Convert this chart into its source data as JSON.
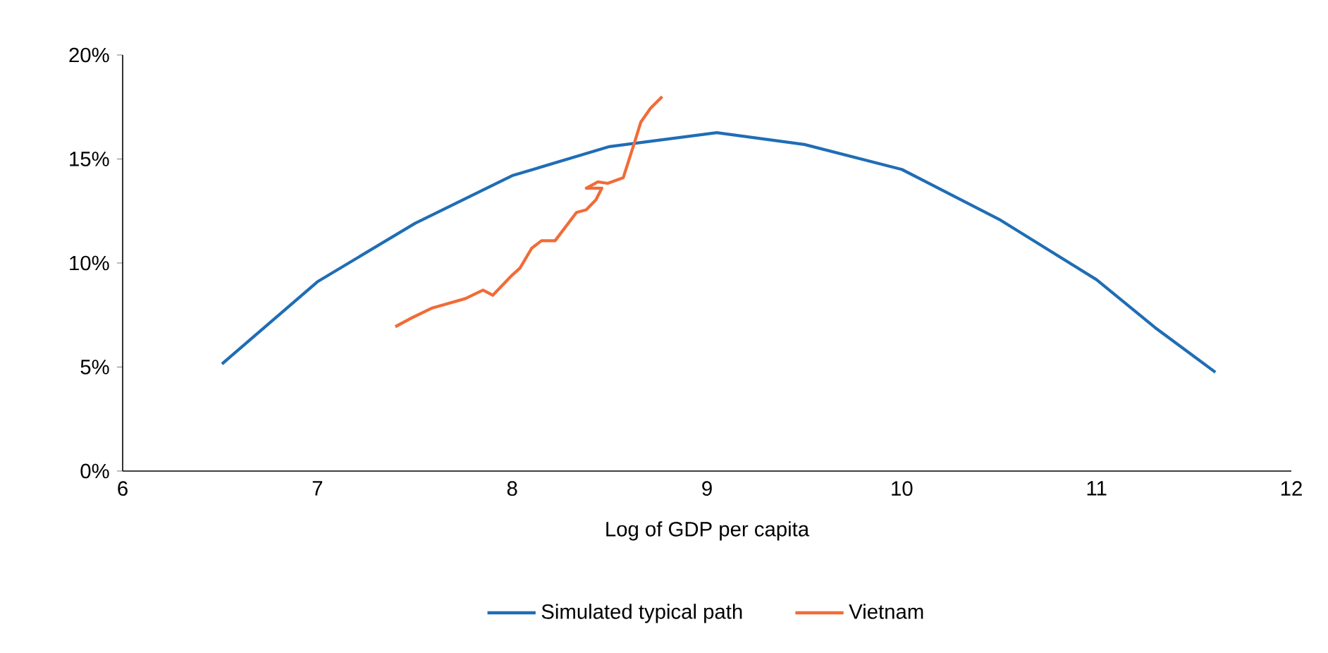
{
  "chart_data": {
    "type": "line",
    "xlabel": "Log of GDP per capita",
    "xlim": [
      6,
      12
    ],
    "xticks": [
      6,
      7,
      8,
      9,
      10,
      11,
      12
    ],
    "ylim": [
      0,
      20
    ],
    "yticks": [
      {
        "value": 0,
        "label": "0%"
      },
      {
        "value": 5,
        "label": "5%"
      },
      {
        "value": 10,
        "label": "10%"
      },
      {
        "value": 15,
        "label": "15%"
      },
      {
        "value": 20,
        "label": "20%"
      }
    ],
    "legend": "bottom",
    "grid": false,
    "marker": "none",
    "line_style": "solid",
    "series": [
      {
        "name": "Simulated typical path",
        "color": "#1f6db5",
        "x": [
          6.51,
          7,
          7.5,
          8,
          8.5,
          9.05,
          9.5,
          10,
          10.5,
          11,
          11.3,
          11.61
        ],
        "values": [
          5.15,
          9.1,
          11.9,
          14.2,
          15.6,
          16.27,
          15.7,
          14.5,
          12.1,
          9.2,
          6.9,
          4.75
        ]
      },
      {
        "name": "Vietnam",
        "color": "#f26b36",
        "x": [
          7.4,
          7.49,
          7.59,
          7.76,
          7.85,
          7.9,
          8.0,
          8.04,
          8.1,
          8.15,
          8.22,
          8.33,
          8.38,
          8.43,
          8.46,
          8.38,
          8.44,
          8.49,
          8.57,
          8.63,
          8.66,
          8.71,
          8.77
        ],
        "values": [
          6.94,
          7.39,
          7.84,
          8.29,
          8.7,
          8.45,
          9.42,
          9.76,
          10.71,
          11.07,
          11.07,
          12.43,
          12.56,
          13.04,
          13.6,
          13.6,
          13.9,
          13.83,
          14.1,
          15.86,
          16.77,
          17.44,
          18.0
        ]
      }
    ]
  }
}
